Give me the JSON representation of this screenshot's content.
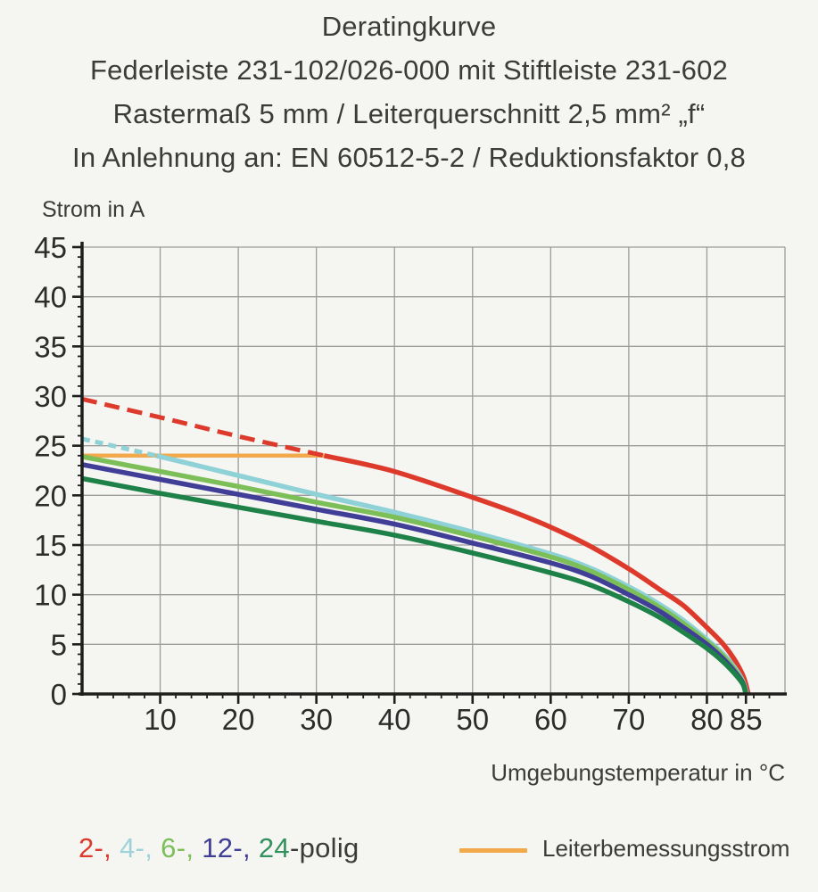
{
  "title": {
    "line1": "Deratingkurve",
    "line2": "Federleiste 231-102/026-000 mit Stiftleiste 231-602",
    "line3": "Rastermaß 5 mm / Leiterquerschnitt 2,5 mm² „f“",
    "line4": "In Anlehnung an: EN 60512-5-2 / Reduktionsfaktor 0,8"
  },
  "axes": {
    "y_label": "Strom in A",
    "x_label": "Umgebungstemperatur in °C"
  },
  "legend": {
    "poles_items": [
      {
        "text": "2-,",
        "color": "#dd3a2c"
      },
      {
        "text": "4-,",
        "color": "#9fd2d8"
      },
      {
        "text": "6-,",
        "color": "#7cbe58"
      },
      {
        "text": "12-,",
        "color": "#403e96"
      },
      {
        "text": "24",
        "color": "#33915d"
      },
      {
        "text": "-polig",
        "color": "#3b3a39"
      }
    ],
    "rated_label": "Leiterbemessungsstrom"
  },
  "colors": {
    "grid": "#9c9c9c",
    "axis": "#1e1e1d",
    "tick_text": "#2c2c2b",
    "orange": "#f2a94b",
    "background": "#f5f5f2"
  },
  "chart_data": {
    "type": "line",
    "title": "Deratingkurve",
    "xlabel": "Umgebungstemperatur in °C",
    "ylabel": "Strom in A",
    "xlim": [
      0,
      90
    ],
    "ylim": [
      0,
      45
    ],
    "grid": true,
    "x_tick_labels": [
      {
        "v": 10,
        "label": "10"
      },
      {
        "v": 20,
        "label": "20"
      },
      {
        "v": 30,
        "label": "30"
      },
      {
        "v": 40,
        "label": "40"
      },
      {
        "v": 50,
        "label": "50"
      },
      {
        "v": 60,
        "label": "60"
      },
      {
        "v": 70,
        "label": "70"
      },
      {
        "v": 80,
        "label": "80"
      },
      {
        "v": 85,
        "label": "85"
      }
    ],
    "y_tick_labels": [
      {
        "v": 0,
        "label": "0"
      },
      {
        "v": 5,
        "label": "5"
      },
      {
        "v": 10,
        "label": "10"
      },
      {
        "v": 15,
        "label": "15"
      },
      {
        "v": 20,
        "label": "20"
      },
      {
        "v": 25,
        "label": "25"
      },
      {
        "v": 30,
        "label": "30"
      },
      {
        "v": 35,
        "label": "35"
      },
      {
        "v": 40,
        "label": "40"
      },
      {
        "v": 45,
        "label": "45"
      },
      {
        "v": 85,
        "label": "85 (x-axis extra tick)"
      }
    ],
    "x_minor_step": 2,
    "y_minor_step": 1,
    "x_grid_step": 10,
    "y_grid_step": 5,
    "rated_current": {
      "name": "Leiterbemessungsstrom",
      "value_a": 24,
      "x_from": 0,
      "x_to": 31,
      "color": "#f2a94b"
    },
    "series": [
      {
        "name": "2-polig",
        "color": "#dd3a2c",
        "dash_until_x": 31,
        "dash_pattern": "17 9",
        "points": [
          [
            0,
            29.7
          ],
          [
            10,
            27.85
          ],
          [
            20,
            25.95
          ],
          [
            31,
            24.0
          ],
          [
            40,
            22.4
          ],
          [
            50,
            19.8
          ],
          [
            55,
            18.4
          ],
          [
            60,
            16.8
          ],
          [
            65,
            14.9
          ],
          [
            70,
            12.6
          ],
          [
            74,
            10.5
          ],
          [
            77,
            8.9
          ],
          [
            80,
            6.7
          ],
          [
            82,
            5.1
          ],
          [
            83.5,
            3.5
          ],
          [
            84.7,
            1.7
          ],
          [
            85.3,
            0
          ]
        ]
      },
      {
        "name": "4-polig",
        "color": "#8ed1d6",
        "dash_until_x": 9.5,
        "dash_pattern": "9 6",
        "points": [
          [
            0,
            25.7
          ],
          [
            9.5,
            24.0
          ],
          [
            20,
            22.0
          ],
          [
            30,
            20.1
          ],
          [
            40,
            18.3
          ],
          [
            50,
            16.3
          ],
          [
            60,
            14.1
          ],
          [
            65,
            12.7
          ],
          [
            70,
            10.8
          ],
          [
            74,
            9.0
          ],
          [
            77,
            7.4
          ],
          [
            80,
            5.5
          ],
          [
            82,
            4.1
          ],
          [
            83.5,
            2.7
          ],
          [
            84.6,
            1.3
          ],
          [
            85.1,
            0
          ]
        ]
      },
      {
        "name": "6-polig",
        "color": "#7cbe58",
        "dash_until_x": 0,
        "dash_pattern": "",
        "points": [
          [
            0,
            23.9
          ],
          [
            10,
            22.4
          ],
          [
            20,
            20.9
          ],
          [
            30,
            19.3
          ],
          [
            40,
            17.8
          ],
          [
            50,
            15.9
          ],
          [
            60,
            13.8
          ],
          [
            65,
            12.4
          ],
          [
            70,
            10.5
          ],
          [
            74,
            8.7
          ],
          [
            77,
            7.1
          ],
          [
            80,
            5.3
          ],
          [
            82,
            3.9
          ],
          [
            83.5,
            2.5
          ],
          [
            84.6,
            1.2
          ],
          [
            85,
            0
          ]
        ]
      },
      {
        "name": "12-polig",
        "color": "#403e96",
        "dash_until_x": 0,
        "dash_pattern": "",
        "points": [
          [
            0,
            23.1
          ],
          [
            10,
            21.6
          ],
          [
            20,
            20.1
          ],
          [
            30,
            18.6
          ],
          [
            40,
            17.1
          ],
          [
            50,
            15.2
          ],
          [
            60,
            13.2
          ],
          [
            65,
            11.9
          ],
          [
            70,
            10.0
          ],
          [
            74,
            8.3
          ],
          [
            77,
            6.7
          ],
          [
            80,
            5.0
          ],
          [
            82,
            3.6
          ],
          [
            83.5,
            2.3
          ],
          [
            84.6,
            1.1
          ],
          [
            85,
            0
          ]
        ]
      },
      {
        "name": "24-polig",
        "color": "#1e8148",
        "dash_until_x": 0,
        "dash_pattern": "",
        "points": [
          [
            0,
            21.7
          ],
          [
            10,
            20.2
          ],
          [
            20,
            18.8
          ],
          [
            30,
            17.4
          ],
          [
            40,
            16.0
          ],
          [
            50,
            14.2
          ],
          [
            60,
            12.2
          ],
          [
            65,
            11.0
          ],
          [
            70,
            9.3
          ],
          [
            74,
            7.7
          ],
          [
            77,
            6.2
          ],
          [
            80,
            4.6
          ],
          [
            82,
            3.3
          ],
          [
            83.5,
            2.1
          ],
          [
            84.6,
            1.0
          ],
          [
            85,
            0
          ]
        ]
      }
    ]
  }
}
